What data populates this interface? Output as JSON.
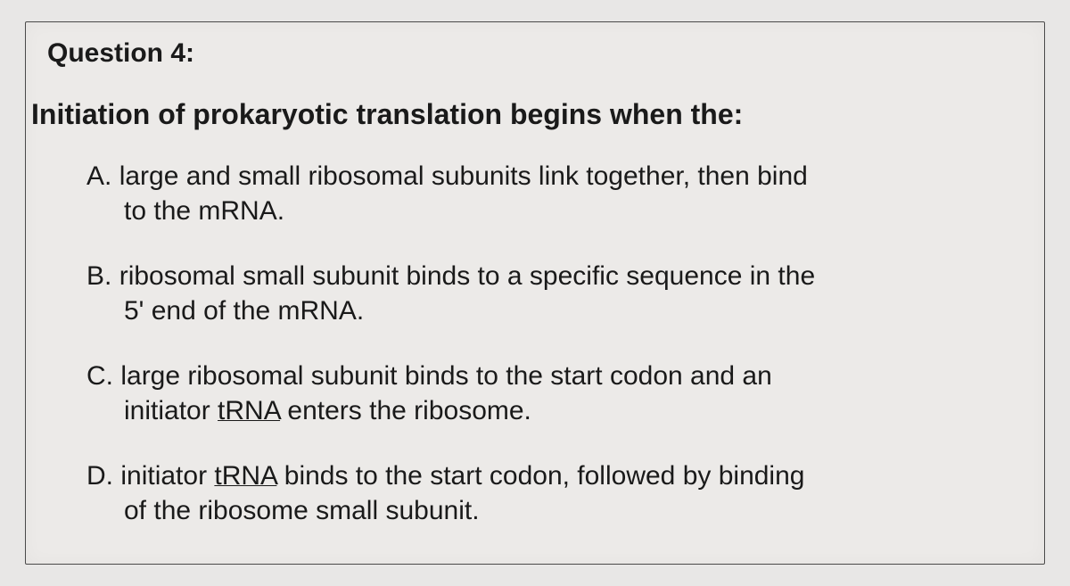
{
  "page": {
    "background_color": "#e8e7e6",
    "text_color": "#1a1a1a",
    "header_fontsize": 30,
    "stem_fontsize": 32,
    "option_fontsize": 30,
    "font_family": "Arial, Helvetica, sans-serif"
  },
  "question": {
    "number_label": "Question 4:",
    "stem": "Initiation of prokaryotic translation begins when the:",
    "options": {
      "A": {
        "label": "A.",
        "line1": "large and small ribosomal subunits link together, then bind",
        "line2": "to the mRNA."
      },
      "B": {
        "label": "B.",
        "line1": "ribosomal small subunit binds to a specific sequence in the",
        "line2": "5' end of the mRNA."
      },
      "C": {
        "label": "C.",
        "line1": "large ribosomal subunit binds to the start codon and an",
        "line2_pre": "initiator ",
        "line2_underlined": "tRNA",
        "line2_post": " enters the ribosome."
      },
      "D": {
        "label": "D.",
        "line1_pre": "initiator ",
        "line1_underlined": "tRNA",
        "line1_post": " binds to the start codon, followed by binding",
        "line2": "of the ribosome small subunit."
      }
    }
  }
}
